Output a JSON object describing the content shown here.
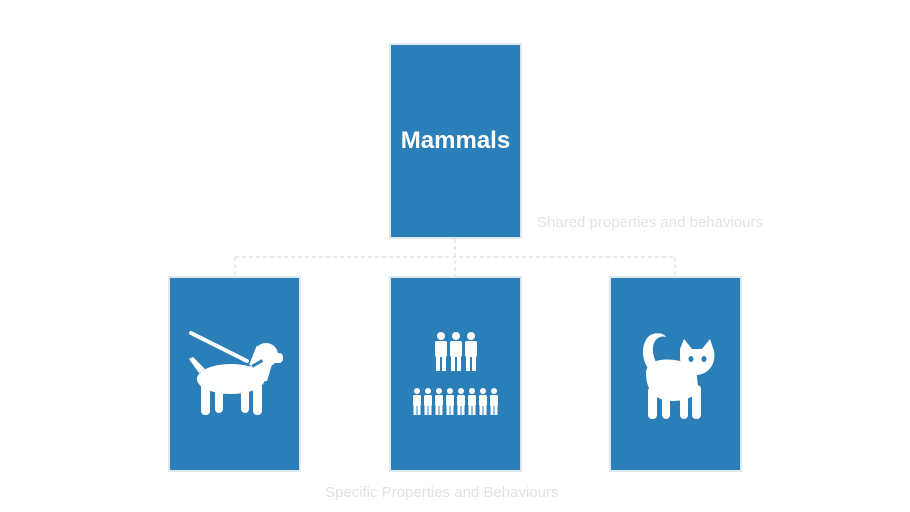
{
  "diagram": {
    "root": {
      "title": "Mammals"
    },
    "children": [
      {
        "icon": "dog-on-leash-icon"
      },
      {
        "icon": "people-group-icon"
      },
      {
        "icon": "cat-icon"
      }
    ],
    "captions": {
      "shared": "Shared properties and behaviours",
      "specific": "Specific Properties and Behaviours"
    }
  },
  "colors": {
    "card": "#2b7fb8",
    "card_border": "#dfe8ef",
    "caption": "#e3e3e3",
    "connector": "#e0e0e0"
  }
}
